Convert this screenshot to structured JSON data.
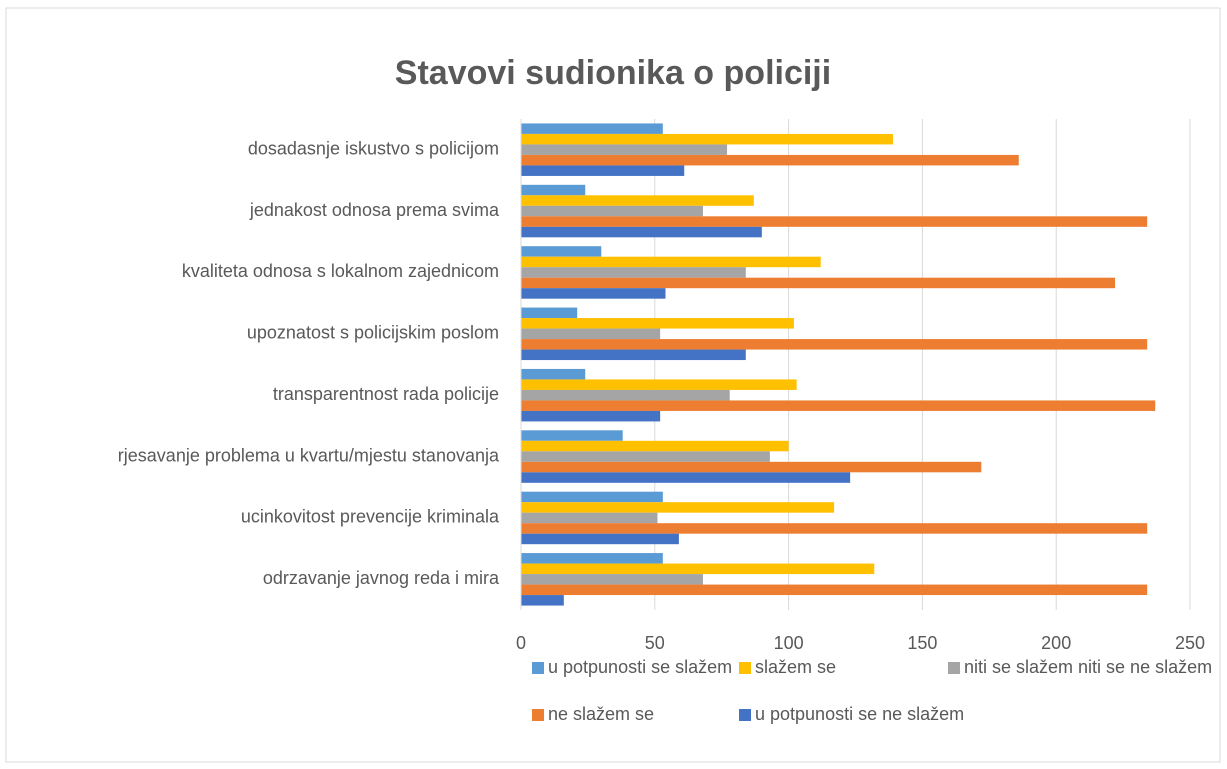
{
  "chart_data": {
    "type": "bar",
    "orientation": "horizontal",
    "title": "Stavovi sudionika o policiji",
    "categories": [
      "dosadasnje iskustvo s policijom",
      "jednakost odnosa prema svima",
      "kvaliteta odnosa s lokalnom zajednicom",
      "upoznatost s policijskim poslom",
      "transparentnost rada policije",
      "rjesavanje problema u kvartu/mjestu stanovanja",
      "ucinkovitost prevencije kriminala",
      "odrzavanje javnog reda i mira"
    ],
    "series": [
      {
        "name": "u potpunosti se slažem",
        "color": "#5b9bd5",
        "values": [
          53,
          24,
          30,
          21,
          24,
          38,
          53,
          53
        ]
      },
      {
        "name": "slažem se",
        "color": "#ffc000",
        "values": [
          139,
          87,
          112,
          102,
          103,
          100,
          117,
          132
        ]
      },
      {
        "name": "niti se slažem niti se ne slažem",
        "color": "#a5a5a5",
        "values": [
          77,
          68,
          84,
          52,
          78,
          93,
          51,
          68
        ]
      },
      {
        "name": "ne slažem se",
        "color": "#ed7d31",
        "values": [
          186,
          234,
          222,
          234,
          237,
          172,
          234,
          234
        ]
      },
      {
        "name": "u potpunosti se ne slažem",
        "color": "#4472c4",
        "values": [
          61,
          90,
          54,
          84,
          52,
          123,
          59,
          16
        ]
      }
    ],
    "xlim": [
      0,
      250
    ],
    "xticks": [
      0,
      50,
      100,
      150,
      200,
      250
    ],
    "grid": true,
    "legend": "bottom"
  }
}
